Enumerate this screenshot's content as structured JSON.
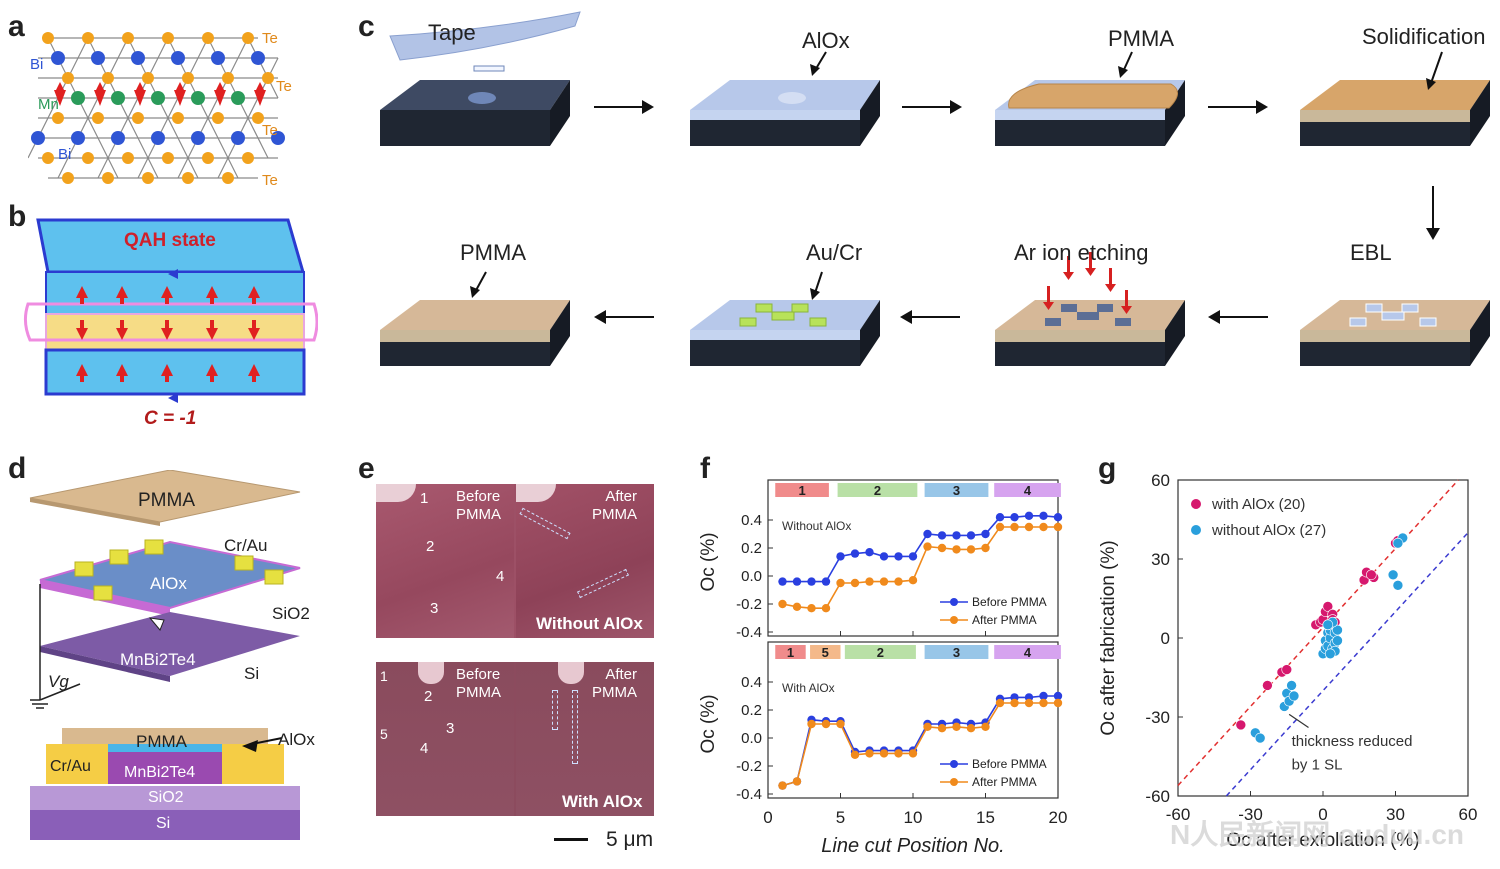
{
  "panels": {
    "a": "a",
    "b": "b",
    "c": "c",
    "d": "d",
    "e": "e",
    "f": "f",
    "g": "g"
  },
  "panel_a": {
    "atoms": {
      "bi_top": "Bi",
      "mn": "Mn",
      "bi_bottom": "Bi",
      "te1": "Te",
      "te2": "Te",
      "te3": "Te",
      "te4": "Te"
    }
  },
  "panel_b": {
    "title": "QAH state",
    "chern": "C = -1"
  },
  "panel_c": {
    "steps": [
      "Tape",
      "AlOx",
      "PMMA",
      "Solidification",
      "EBL",
      "Ar ion etching",
      "Au/Cr",
      "PMMA"
    ],
    "colors": {
      "substrate": "#2c3440",
      "alox": "#b7c8ea",
      "pmma": "#d7a56a",
      "contact": "#b8e25a",
      "etch_arrow": "#d62020"
    }
  },
  "panel_d": {
    "pmma": "PMMA",
    "crau": "Cr/Au",
    "alox": "AlOx",
    "sio2": "SiO2",
    "mnbite": "MnBi2Te4",
    "si": "Si",
    "vg": "Vg",
    "cross": {
      "pmma": "PMMA",
      "alox": "AlOx",
      "crau": "Cr/Au",
      "mnbite": "MnBi2Te4",
      "sio2": "SiO2",
      "si": "Si"
    }
  },
  "panel_e": {
    "before": "Before\nPMMA",
    "after": "After\nPMMA",
    "without": "Without AlOx",
    "with": "With AlOx",
    "scale": "5 μm",
    "top_nums": [
      "1",
      "2",
      "3",
      "4"
    ],
    "bottom_nums": [
      "1",
      "2",
      "3",
      "4",
      "5"
    ]
  },
  "panel_f": {
    "xlabel": "Line cut Position No.",
    "ylabel": "Oc (%)",
    "top_note": "Without AlOx",
    "bottom_note": "With AlOx",
    "legend_before": "Before PMMA",
    "legend_after": "After PMMA",
    "colors": {
      "before": "#2a3fe0",
      "after": "#f08a1c"
    }
  },
  "panel_g": {
    "xlabel": "Oc after exfoliation (%)",
    "ylabel": "Oc after fabrication (%)",
    "legend_with": "with AlOx (20)",
    "legend_without": "without AlOx (27)",
    "annotation": "thickness reduced\nby 1 SL",
    "watermark": "N人民新闻网 ouduu.cn",
    "colors": {
      "with": "#d6186e",
      "without": "#2a9fdc",
      "red_line": "#e23030",
      "blue_line": "#3b3bd0"
    }
  },
  "chart_data": [
    {
      "type": "line",
      "title": "Without AlOx",
      "x": [
        1,
        2,
        3,
        4,
        5,
        6,
        7,
        8,
        9,
        10,
        11,
        12,
        13,
        14,
        15,
        16,
        17,
        18,
        19,
        20
      ],
      "xlim": [
        0,
        20
      ],
      "ylim": [
        -0.4,
        0.5
      ],
      "xticks": [
        0,
        5,
        10,
        15,
        20
      ],
      "yticks": [
        -0.4,
        -0.2,
        0.0,
        0.2,
        0.4
      ],
      "regions": [
        {
          "label": "1",
          "from": 0.5,
          "to": 4.2,
          "color": "#f08b8b"
        },
        {
          "label": "2",
          "from": 4.8,
          "to": 10.3,
          "color": "#b9e0a6"
        },
        {
          "label": "3",
          "from": 10.8,
          "to": 15.2,
          "color": "#98c6e8"
        },
        {
          "label": "4",
          "from": 15.6,
          "to": 20.2,
          "color": "#d6a3ef"
        }
      ],
      "series": [
        {
          "name": "Before PMMA",
          "values": [
            -0.04,
            -0.04,
            -0.04,
            -0.04,
            0.14,
            0.16,
            0.17,
            0.14,
            0.14,
            0.14,
            0.3,
            0.29,
            0.29,
            0.29,
            0.3,
            0.42,
            0.42,
            0.43,
            0.43,
            0.42
          ]
        },
        {
          "name": "After PMMA",
          "values": [
            -0.2,
            -0.22,
            -0.23,
            -0.23,
            -0.05,
            -0.05,
            -0.04,
            -0.04,
            -0.04,
            -0.03,
            0.21,
            0.2,
            0.19,
            0.19,
            0.2,
            0.35,
            0.35,
            0.35,
            0.35,
            0.35
          ]
        }
      ]
    },
    {
      "type": "line",
      "title": "With AlOx",
      "x": [
        1,
        2,
        3,
        4,
        5,
        6,
        7,
        8,
        9,
        10,
        11,
        12,
        13,
        14,
        15,
        16,
        17,
        18,
        19,
        20
      ],
      "xlim": [
        0,
        20
      ],
      "ylim": [
        -0.4,
        0.5
      ],
      "xticks": [
        0,
        5,
        10,
        15,
        20
      ],
      "yticks": [
        -0.4,
        -0.2,
        0.0,
        0.2,
        0.4
      ],
      "regions": [
        {
          "label": "1",
          "from": 0.5,
          "to": 2.6,
          "color": "#f08b8b"
        },
        {
          "label": "5",
          "from": 2.9,
          "to": 5.0,
          "color": "#f4b98a"
        },
        {
          "label": "2",
          "from": 5.3,
          "to": 10.2,
          "color": "#b9e0a6"
        },
        {
          "label": "3",
          "from": 10.8,
          "to": 15.2,
          "color": "#98c6e8"
        },
        {
          "label": "4",
          "from": 15.6,
          "to": 20.2,
          "color": "#d6a3ef"
        }
      ],
      "series": [
        {
          "name": "Before PMMA",
          "values": [
            -0.34,
            -0.31,
            0.13,
            0.12,
            0.12,
            -0.1,
            -0.09,
            -0.09,
            -0.09,
            -0.09,
            0.1,
            0.1,
            0.11,
            0.1,
            0.11,
            0.28,
            0.29,
            0.29,
            0.3,
            0.3
          ]
        },
        {
          "name": "After PMMA",
          "values": [
            -0.34,
            -0.31,
            0.1,
            0.1,
            0.1,
            -0.12,
            -0.11,
            -0.11,
            -0.11,
            -0.11,
            0.08,
            0.07,
            0.08,
            0.07,
            0.08,
            0.25,
            0.25,
            0.25,
            0.25,
            0.25
          ]
        }
      ]
    },
    {
      "type": "scatter",
      "xlim": [
        -60,
        60
      ],
      "ylim": [
        -60,
        60
      ],
      "xticks": [
        -60,
        -30,
        0,
        30,
        60
      ],
      "yticks": [
        -60,
        -30,
        0,
        30,
        60
      ],
      "series": [
        {
          "name": "with AlOx (20)",
          "points": [
            [
              -34,
              -33
            ],
            [
              -23,
              -18
            ],
            [
              -17,
              -13
            ],
            [
              -15,
              -12
            ],
            [
              -3,
              5
            ],
            [
              -1,
              6
            ],
            [
              0,
              7
            ],
            [
              2,
              5
            ],
            [
              1,
              10
            ],
            [
              2,
              12
            ],
            [
              4,
              9
            ],
            [
              4,
              7
            ],
            [
              3,
              4
            ],
            [
              5,
              6
            ],
            [
              17,
              22
            ],
            [
              18,
              25
            ],
            [
              21,
              23
            ],
            [
              20,
              24
            ],
            [
              30,
              36
            ],
            [
              31,
              37
            ]
          ]
        },
        {
          "name": "without AlOx (27)",
          "points": [
            [
              -28,
              -36
            ],
            [
              -26,
              -38
            ],
            [
              -16,
              -26
            ],
            [
              -15,
              -21
            ],
            [
              -14,
              -24
            ],
            [
              -13,
              -18
            ],
            [
              -12,
              -22
            ],
            [
              0,
              -6
            ],
            [
              1,
              -4
            ],
            [
              1,
              -1
            ],
            [
              2,
              2
            ],
            [
              2,
              -3
            ],
            [
              3,
              0
            ],
            [
              3,
              3
            ],
            [
              4,
              -4
            ],
            [
              5,
              -2
            ],
            [
              5,
              2
            ],
            [
              6,
              -1
            ],
            [
              6,
              3
            ],
            [
              4,
              6
            ],
            [
              2,
              5
            ],
            [
              5,
              -5
            ],
            [
              3,
              -6
            ],
            [
              29,
              24
            ],
            [
              31,
              20
            ],
            [
              33,
              38
            ],
            [
              31,
              36
            ]
          ]
        }
      ],
      "lines": [
        {
          "name": "red dashed",
          "slope": 1,
          "intercept": 4
        },
        {
          "name": "blue dashed",
          "slope": 1,
          "intercept": -20
        }
      ]
    }
  ]
}
